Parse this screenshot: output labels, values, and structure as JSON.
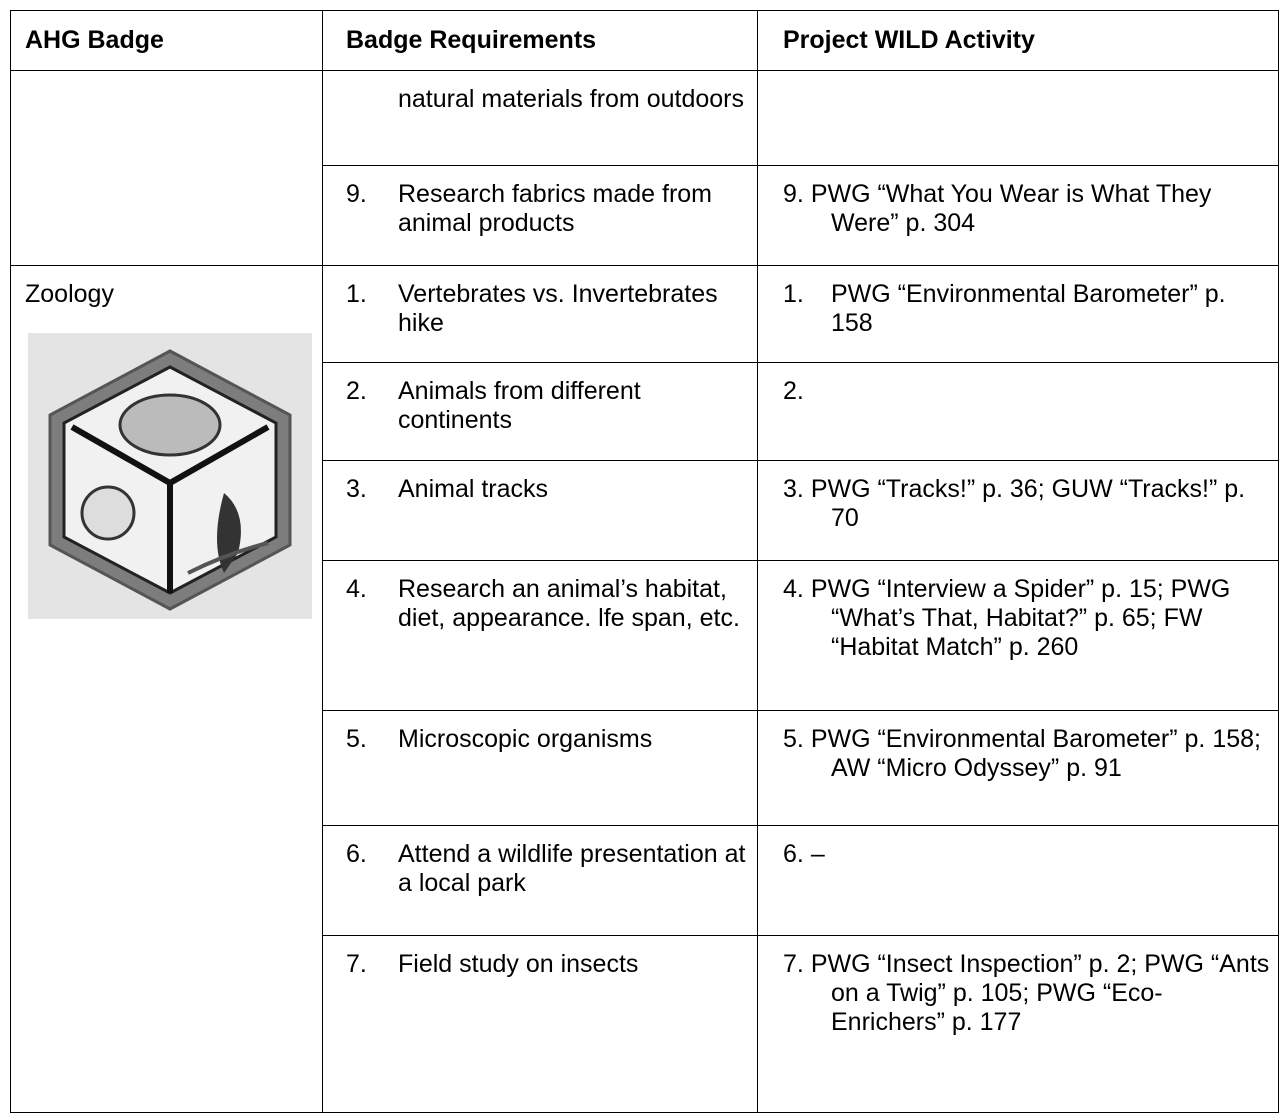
{
  "table": {
    "header": [
      "AHG Badge",
      "Badge Requirements",
      "Project WILD Activity"
    ],
    "groups": [
      {
        "rows": [
          {
            "requirement": {
              "text": "natural materials from outdoors"
            }
          },
          {
            "requirement": {
              "number": "9.",
              "text": "Research fabrics made from animal products"
            },
            "activity": {
              "number": "9.",
              "text": "PWG “What You Wear is What They Were” p. 304"
            }
          }
        ]
      },
      {
        "badge": "Zoology",
        "rows": [
          {
            "requirement": {
              "number": "1.",
              "text": "Vertebrates vs. Invertebrates hike"
            },
            "activity": {
              "number": "1.",
              "text": "PWG “Environmental Barometer” p. 158"
            }
          },
          {
            "requirement": {
              "number": "2.",
              "text": "Animals from different continents"
            },
            "activity": {
              "number": "2."
            }
          },
          {
            "requirement": {
              "number": "3.",
              "text": "Animal tracks"
            },
            "activity": {
              "number": "3.",
              "text": "PWG “Tracks!” p. 36; GUW “Tracks!” p. 70"
            }
          },
          {
            "requirement": {
              "number": "4.",
              "text": "Research an animal’s habitat, diet, appearance. lfe span, etc."
            },
            "activity": {
              "number": "4.",
              "text": "PWG “Interview a Spider” p. 15; PWG “What’s That, Habitat?” p. 65; FW “Habitat Match” p. 260"
            }
          },
          {
            "requirement": {
              "number": "5.",
              "text": "Microscopic organisms"
            },
            "activity": {
              "number": "5.",
              "text": "PWG “Environmental Barometer” p. 158; AW “Micro Odyssey” p. 91"
            }
          },
          {
            "requirement": {
              "number": "6.",
              "text": "Attend a wildlife presentation at a local park"
            },
            "activity": {
              "number": "6.",
              "text": "–"
            }
          },
          {
            "requirement": {
              "number": "7.",
              "text": "Field study on insects"
            },
            "activity": {
              "number": "7.",
              "text": "PWG “Insect Inspection” p. 2; PWG “Ants on a Twig” p. 105; PWG “Eco-Enrichers” p. 177"
            }
          }
        ]
      }
    ]
  }
}
